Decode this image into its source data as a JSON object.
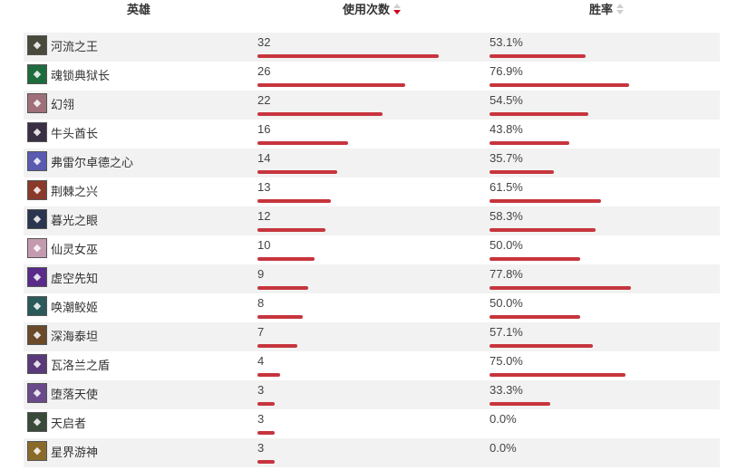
{
  "headers": {
    "hero": "英雄",
    "uses": "使用次数",
    "winrate": "胜率"
  },
  "sort": {
    "column": "uses",
    "direction": "desc"
  },
  "colors": {
    "bar": "#c7353d",
    "sort_active": "#d0021b",
    "row_alt": "#f2f2f2"
  },
  "rows": [
    {
      "name": "河流之王",
      "uses": "32",
      "winrate": "53.1%",
      "uses_n": 32,
      "win_n": 53.1,
      "avatar_color": "#4a4a3c",
      "icon": "river-king-icon"
    },
    {
      "name": "魂锁典狱长",
      "uses": "26",
      "winrate": "76.9%",
      "uses_n": 26,
      "win_n": 76.9,
      "avatar_color": "#1e6b3e",
      "icon": "chain-warden-icon"
    },
    {
      "name": "幻翎",
      "uses": "22",
      "winrate": "54.5%",
      "uses_n": 22,
      "win_n": 54.5,
      "avatar_color": "#a0707a",
      "icon": "feather-icon"
    },
    {
      "name": "牛头酋长",
      "uses": "16",
      "winrate": "43.8%",
      "uses_n": 16,
      "win_n": 43.8,
      "avatar_color": "#3a2f45",
      "icon": "minotaur-icon"
    },
    {
      "name": "弗雷尔卓德之心",
      "uses": "14",
      "winrate": "35.7%",
      "uses_n": 14,
      "win_n": 35.7,
      "avatar_color": "#5a5ab0",
      "icon": "frost-heart-icon"
    },
    {
      "name": "荆棘之兴",
      "uses": "13",
      "winrate": "61.5%",
      "uses_n": 13,
      "win_n": 61.5,
      "avatar_color": "#8a3a2a",
      "icon": "thorn-icon"
    },
    {
      "name": "暮光之眼",
      "uses": "12",
      "winrate": "58.3%",
      "uses_n": 12,
      "win_n": 58.3,
      "avatar_color": "#2a3550",
      "icon": "twilight-eye-icon"
    },
    {
      "name": "仙灵女巫",
      "uses": "10",
      "winrate": "50.0%",
      "uses_n": 10,
      "win_n": 50.0,
      "avatar_color": "#c49ab0",
      "icon": "fairy-witch-icon"
    },
    {
      "name": "虚空先知",
      "uses": "9",
      "winrate": "77.8%",
      "uses_n": 9,
      "win_n": 77.8,
      "avatar_color": "#5a2a8a",
      "icon": "void-prophet-icon"
    },
    {
      "name": "唤潮鲛姬",
      "uses": "8",
      "winrate": "50.0%",
      "uses_n": 8,
      "win_n": 50.0,
      "avatar_color": "#2a5a5a",
      "icon": "tide-siren-icon"
    },
    {
      "name": "深海泰坦",
      "uses": "7",
      "winrate": "57.1%",
      "uses_n": 7,
      "win_n": 57.1,
      "avatar_color": "#6a4a2a",
      "icon": "titan-icon"
    },
    {
      "name": "瓦洛兰之盾",
      "uses": "4",
      "winrate": "75.0%",
      "uses_n": 4,
      "win_n": 75.0,
      "avatar_color": "#5a3a7a",
      "icon": "shield-icon"
    },
    {
      "name": "堕落天使",
      "uses": "3",
      "winrate": "33.3%",
      "uses_n": 3,
      "win_n": 33.3,
      "avatar_color": "#6a4a8a",
      "icon": "fallen-angel-icon"
    },
    {
      "name": "天启者",
      "uses": "3",
      "winrate": "0.0%",
      "uses_n": 3,
      "win_n": 0.0,
      "avatar_color": "#3a4a3a",
      "icon": "starchild-icon"
    },
    {
      "name": "星界游神",
      "uses": "3",
      "winrate": "0.0%",
      "uses_n": 3,
      "win_n": 0.0,
      "avatar_color": "#8a6a2a",
      "icon": "cosmic-icon"
    }
  ]
}
